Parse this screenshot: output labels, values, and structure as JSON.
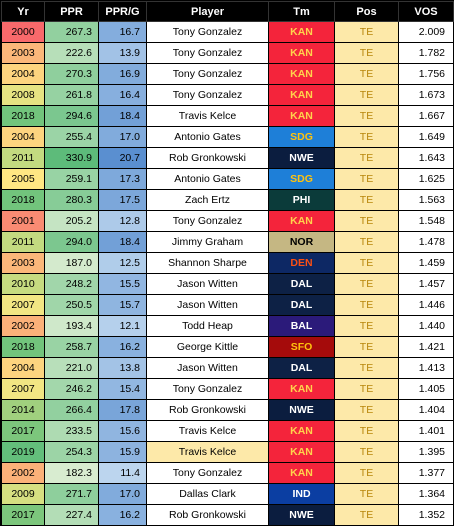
{
  "headers": [
    "Yr",
    "PPR",
    "PPR/G",
    "Player",
    "Tm",
    "Pos",
    "VOS"
  ],
  "rows": [
    {
      "yr": "2000",
      "ppr": "267.3",
      "pprg": "16.7",
      "player": "Tony Gonzalez",
      "tm": "KAN",
      "pos": "TE",
      "vos": "2.009"
    },
    {
      "yr": "2003",
      "ppr": "222.6",
      "pprg": "13.9",
      "player": "Tony Gonzalez",
      "tm": "KAN",
      "pos": "TE",
      "vos": "1.782"
    },
    {
      "yr": "2004",
      "ppr": "270.3",
      "pprg": "16.9",
      "player": "Tony Gonzalez",
      "tm": "KAN",
      "pos": "TE",
      "vos": "1.756"
    },
    {
      "yr": "2008",
      "ppr": "261.8",
      "pprg": "16.4",
      "player": "Tony Gonzalez",
      "tm": "KAN",
      "pos": "TE",
      "vos": "1.673"
    },
    {
      "yr": "2018",
      "ppr": "294.6",
      "pprg": "18.4",
      "player": "Travis Kelce",
      "tm": "KAN",
      "pos": "TE",
      "vos": "1.667"
    },
    {
      "yr": "2004",
      "ppr": "255.4",
      "pprg": "17.0",
      "player": "Antonio Gates",
      "tm": "SDG",
      "pos": "TE",
      "vos": "1.649"
    },
    {
      "yr": "2011",
      "ppr": "330.9",
      "pprg": "20.7",
      "player": "Rob Gronkowski",
      "tm": "NWE",
      "pos": "TE",
      "vos": "1.643"
    },
    {
      "yr": "2005",
      "ppr": "259.1",
      "pprg": "17.3",
      "player": "Antonio Gates",
      "tm": "SDG",
      "pos": "TE",
      "vos": "1.625"
    },
    {
      "yr": "2018",
      "ppr": "280.3",
      "pprg": "17.5",
      "player": "Zach Ertz",
      "tm": "PHI",
      "pos": "TE",
      "vos": "1.563"
    },
    {
      "yr": "2001",
      "ppr": "205.2",
      "pprg": "12.8",
      "player": "Tony Gonzalez",
      "tm": "KAN",
      "pos": "TE",
      "vos": "1.548"
    },
    {
      "yr": "2011",
      "ppr": "294.0",
      "pprg": "18.4",
      "player": "Jimmy Graham",
      "tm": "NOR",
      "pos": "TE",
      "vos": "1.478"
    },
    {
      "yr": "2003",
      "ppr": "187.0",
      "pprg": "12.5",
      "player": "Shannon Sharpe",
      "tm": "DEN",
      "pos": "TE",
      "vos": "1.459"
    },
    {
      "yr": "2010",
      "ppr": "248.2",
      "pprg": "15.5",
      "player": "Jason Witten",
      "tm": "DAL",
      "pos": "TE",
      "vos": "1.457"
    },
    {
      "yr": "2007",
      "ppr": "250.5",
      "pprg": "15.7",
      "player": "Jason Witten",
      "tm": "DAL",
      "pos": "TE",
      "vos": "1.446"
    },
    {
      "yr": "2002",
      "ppr": "193.4",
      "pprg": "12.1",
      "player": "Todd Heap",
      "tm": "BAL",
      "pos": "TE",
      "vos": "1.440"
    },
    {
      "yr": "2018",
      "ppr": "258.7",
      "pprg": "16.2",
      "player": "George Kittle",
      "tm": "SFO",
      "pos": "TE",
      "vos": "1.421"
    },
    {
      "yr": "2004",
      "ppr": "221.0",
      "pprg": "13.8",
      "player": "Jason Witten",
      "tm": "DAL",
      "pos": "TE",
      "vos": "1.413"
    },
    {
      "yr": "2007",
      "ppr": "246.2",
      "pprg": "15.4",
      "player": "Tony Gonzalez",
      "tm": "KAN",
      "pos": "TE",
      "vos": "1.405"
    },
    {
      "yr": "2014",
      "ppr": "266.4",
      "pprg": "17.8",
      "player": "Rob Gronkowski",
      "tm": "NWE",
      "pos": "TE",
      "vos": "1.404"
    },
    {
      "yr": "2017",
      "ppr": "233.5",
      "pprg": "15.6",
      "player": "Travis Kelce",
      "tm": "KAN",
      "pos": "TE",
      "vos": "1.401"
    },
    {
      "yr": "2019",
      "ppr": "254.3",
      "pprg": "15.9",
      "player": "Travis Kelce",
      "tm": "KAN",
      "pos": "TE",
      "vos": "1.395",
      "highlight": true
    },
    {
      "yr": "2002",
      "ppr": "182.3",
      "pprg": "11.4",
      "player": "Tony Gonzalez",
      "tm": "KAN",
      "pos": "TE",
      "vos": "1.377"
    },
    {
      "yr": "2009",
      "ppr": "271.7",
      "pprg": "17.0",
      "player": "Dallas Clark",
      "tm": "IND",
      "pos": "TE",
      "vos": "1.364"
    },
    {
      "yr": "2017",
      "ppr": "227.4",
      "pprg": "16.2",
      "player": "Rob Gronkowski",
      "tm": "NWE",
      "pos": "TE",
      "vos": "1.352"
    }
  ],
  "year_colors": {
    "2000": "#f8696b",
    "2001": "#f98b73",
    "2002": "#fbb179",
    "2003": "#fbb77a",
    "2004": "#fdd47f",
    "2005": "#ffe783",
    "2007": "#f2e683",
    "2008": "#e6e382",
    "2009": "#d6df81",
    "2010": "#c6db80",
    "2011": "#c3da80",
    "2014": "#a0d07e",
    "2017": "#7cc67c",
    "2018": "#72c47c",
    "2019": "#63be7b"
  },
  "team_colors": {
    "KAN": {
      "bg": "#f4243b",
      "fg": "#ffd34d"
    },
    "SDG": {
      "bg": "#1e7fd8",
      "fg": "#ffc20e"
    },
    "NWE": {
      "bg": "#0b1d3f",
      "fg": "#ffffff"
    },
    "PHI": {
      "bg": "#0b3b3a",
      "fg": "#ffffff"
    },
    "NOR": {
      "bg": "#c5b783",
      "fg": "#000000"
    },
    "DEN": {
      "bg": "#0d2864",
      "fg": "#fb4f14"
    },
    "DAL": {
      "bg": "#0d2145",
      "fg": "#ffffff"
    },
    "BAL": {
      "bg": "#2b1a7a",
      "fg": "#ffffff"
    },
    "SFO": {
      "bg": "#a50b0b",
      "fg": "#ffc20e"
    },
    "IND": {
      "bg": "#0b3ea2",
      "fg": "#ffffff"
    }
  }
}
